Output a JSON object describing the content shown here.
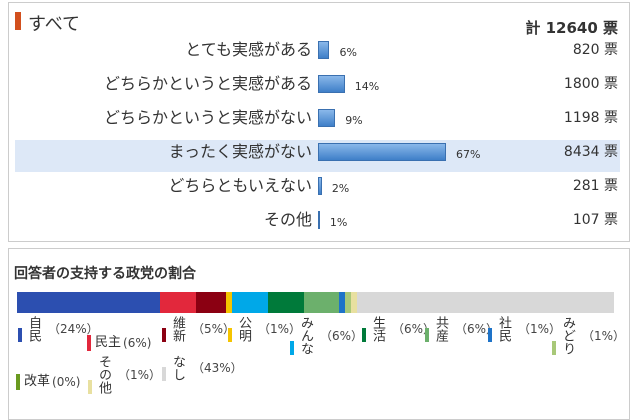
{
  "panel": {
    "title": "すべて",
    "total": "計 12640 票",
    "rows": [
      {
        "label": "とても実感がある",
        "percent": 6,
        "percent_label": "6%",
        "votes": "820 票"
      },
      {
        "label": "どちらかというと実感がある",
        "percent": 14,
        "percent_label": "14%",
        "votes": "1800 票"
      },
      {
        "label": "どちらかというと実感がない",
        "percent": 9,
        "percent_label": "9%",
        "votes": "1198 票"
      },
      {
        "label": "まったく実感がない",
        "percent": 67,
        "percent_label": "67%",
        "votes": "8434 票"
      },
      {
        "label": "どちらともいえない",
        "percent": 2,
        "percent_label": "2%",
        "votes": "281 票"
      },
      {
        "label": "その他",
        "percent": 1,
        "percent_label": "1%",
        "votes": "107 票"
      }
    ]
  },
  "party": {
    "title": "回答者の支持する政党の割合",
    "parties": [
      {
        "name": "自民",
        "share": 24,
        "share_label": "（24%）",
        "color": "#2c4fb0"
      },
      {
        "name": "民主",
        "share": 6,
        "share_label": "(6%)",
        "color": "#e2283c"
      },
      {
        "name": "維新",
        "share": 5,
        "share_label": "（5%）",
        "color": "#8b0012"
      },
      {
        "name": "公明",
        "share": 1,
        "share_label": "（1%）",
        "color": "#f5c400"
      },
      {
        "name": "みんな",
        "share": 6,
        "share_label": "（6%）",
        "color": "#00a8e8"
      },
      {
        "name": "生活",
        "share": 6,
        "share_label": "（6%）",
        "color": "#007a3a"
      },
      {
        "name": "共産",
        "share": 6,
        "share_label": "（6%）",
        "color": "#6cb06c"
      },
      {
        "name": "社民",
        "share": 1,
        "share_label": "（1%）",
        "color": "#1e73c8"
      },
      {
        "name": "みどり",
        "share": 1,
        "share_label": "（1%）",
        "color": "#a8c878"
      },
      {
        "name": "改革",
        "share": 0,
        "share_label": "(0%)",
        "color": "#6a9a20"
      },
      {
        "name": "その他",
        "share": 1,
        "share_label": "（1%）",
        "color": "#e8e0a0"
      },
      {
        "name": "なし",
        "share": 43,
        "share_label": "（43%）",
        "color": "#d8d8d8"
      }
    ]
  }
}
